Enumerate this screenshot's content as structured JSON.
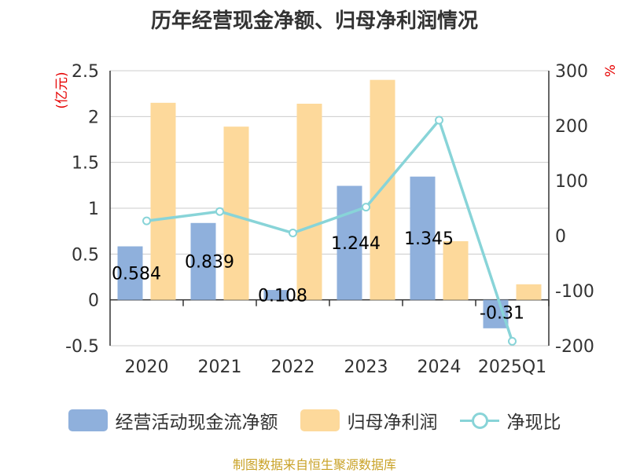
{
  "chart_data": {
    "type": "bar",
    "title": "历年经营现金净额、归母净利润情况",
    "categories": [
      "2020",
      "2021",
      "2022",
      "2023",
      "2024",
      "2025Q1"
    ],
    "series": [
      {
        "name": "经营活动现金流净额",
        "kind": "bar",
        "axis": "left",
        "color": "#8fb0dc",
        "values": [
          0.584,
          0.839,
          0.108,
          1.244,
          1.345,
          -0.31
        ],
        "labels": [
          "0.584",
          "0.839",
          "0.108",
          "1.244",
          "1.345",
          "-0.31"
        ]
      },
      {
        "name": "归母净利润",
        "kind": "bar",
        "axis": "left",
        "color": "#fdd99b",
        "values": [
          2.15,
          1.89,
          2.14,
          2.4,
          0.64,
          0.17
        ]
      },
      {
        "name": "净现比",
        "kind": "line",
        "axis": "right",
        "color": "#88d4d8",
        "values": [
          27,
          44,
          5,
          52,
          210,
          -192
        ]
      }
    ],
    "y_left": {
      "unit": "(亿元)",
      "min": -0.5,
      "max": 2.5,
      "ticks": [
        "2.5",
        "2",
        "1.5",
        "1",
        "0.5",
        "0",
        "-0.5"
      ]
    },
    "y_right": {
      "unit": "%",
      "min": -200,
      "max": 300,
      "ticks": [
        "300",
        "200",
        "100",
        "0",
        "-100",
        "-200"
      ]
    }
  },
  "legend": {
    "bar1": "经营活动现金流净额",
    "bar2": "归母净利润",
    "line": "净现比"
  },
  "source": "制图数据来自恒生聚源数据库"
}
